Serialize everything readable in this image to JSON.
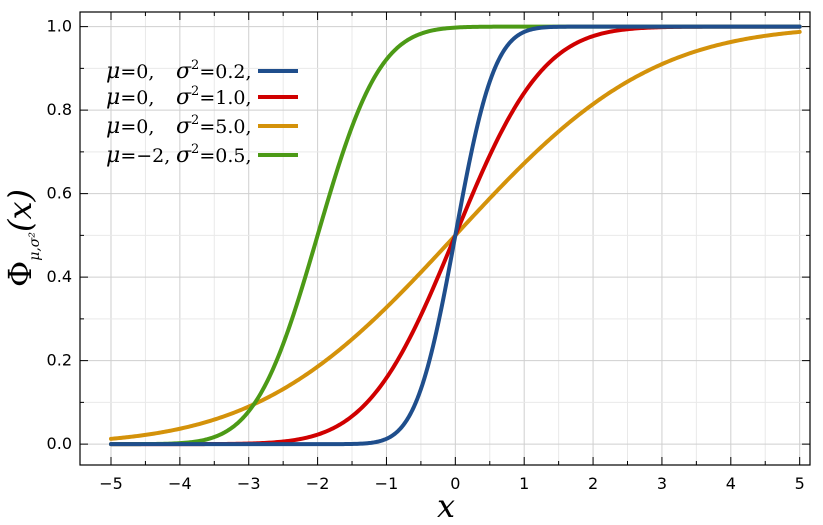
{
  "chart_data": {
    "type": "line",
    "title": "",
    "xlabel": "x",
    "ylabel": "Φμ,σ²(x)",
    "ylabel_parts": {
      "main": "Φ",
      "sub": "μ,σ²",
      "arg": "(x)"
    },
    "xlim": [
      -5.45,
      5.15
    ],
    "ylim": [
      -0.05,
      1.035
    ],
    "x_ticks": [
      -5,
      -4,
      -3,
      -2,
      -1,
      0,
      1,
      2,
      3,
      4,
      5
    ],
    "x_tick_labels": [
      "−5",
      "−4",
      "−3",
      "−2",
      "−1",
      "0",
      "1",
      "2",
      "3",
      "4",
      "5"
    ],
    "y_ticks": [
      0.0,
      0.2,
      0.4,
      0.6,
      0.8,
      1.0
    ],
    "y_tick_labels": [
      "0.0",
      "0.2",
      "0.4",
      "0.6",
      "0.8",
      "1.0"
    ],
    "grid": true,
    "legend_position": "top-left",
    "x_range": [
      -5,
      5
    ],
    "series": [
      {
        "mu": 0,
        "sigma2": 0.2,
        "color": "#1f4e8c",
        "mu_label": "μ",
        "mu_value": "=0,",
        "sigma_label": "σ",
        "sigma_exp": "2",
        "sigma_value": "=0.2,"
      },
      {
        "mu": 0,
        "sigma2": 1.0,
        "color": "#d00000",
        "mu_label": "μ",
        "mu_value": "=0,",
        "sigma_label": "σ",
        "sigma_exp": "2",
        "sigma_value": "=1.0,"
      },
      {
        "mu": 0,
        "sigma2": 5.0,
        "color": "#d4920a",
        "mu_label": "μ",
        "mu_value": "=0,",
        "sigma_label": "σ",
        "sigma_exp": "2",
        "sigma_value": "=5.0,"
      },
      {
        "mu": -2,
        "sigma2": 0.5,
        "color": "#4c9a16",
        "mu_label": "μ",
        "mu_value": "=−2,",
        "sigma_label": "σ",
        "sigma_exp": "2",
        "sigma_value": "=0.5,"
      }
    ]
  }
}
